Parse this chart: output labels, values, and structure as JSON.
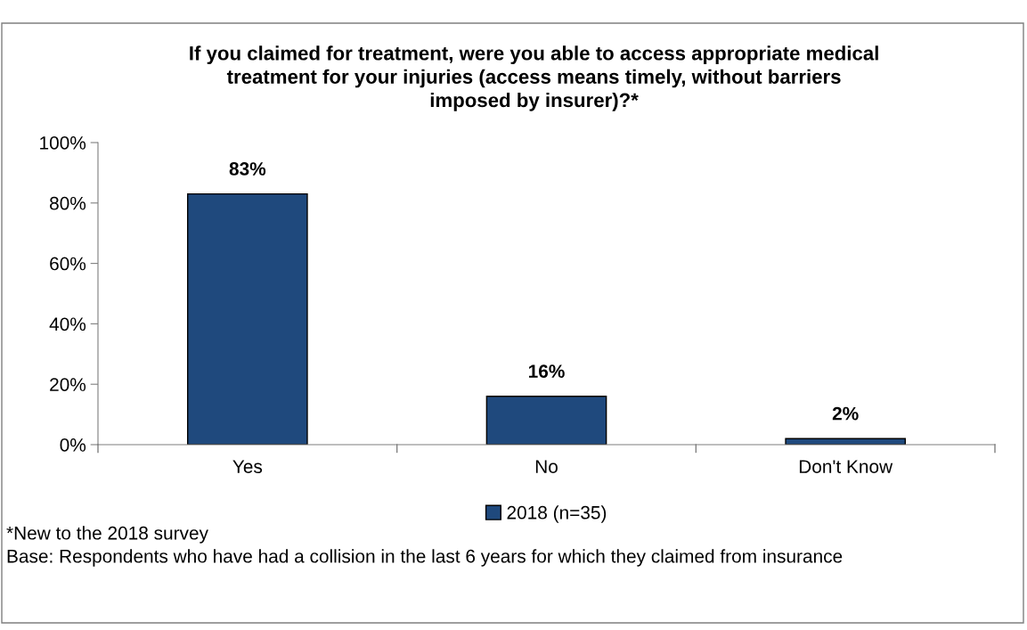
{
  "chart_data": {
    "type": "bar",
    "title": "If you claimed for treatment, were you able to access appropriate medical\ntreatment for your injuries (access means timely, without barriers\nimposed by insurer)?*",
    "categories": [
      "Yes",
      "No",
      "Don't Know"
    ],
    "series": [
      {
        "name": "2018 (n=35)",
        "color": "#1f497d",
        "values": [
          83,
          16,
          2
        ],
        "value_labels": [
          "83%",
          "16%",
          "2%"
        ]
      }
    ],
    "ylim": [
      0,
      100
    ],
    "yticks": [
      {
        "value": 0,
        "label": "0%"
      },
      {
        "value": 20,
        "label": "20%"
      },
      {
        "value": 40,
        "label": "40%"
      },
      {
        "value": 60,
        "label": "60%"
      },
      {
        "value": 80,
        "label": "80%"
      },
      {
        "value": 100,
        "label": "100%"
      }
    ],
    "grid": false,
    "legend": "bottom",
    "annotations": [
      "*New to the 2018 survey",
      "Base: Respondents who have had a collision in the last 6 years for which they claimed from insurance"
    ]
  }
}
